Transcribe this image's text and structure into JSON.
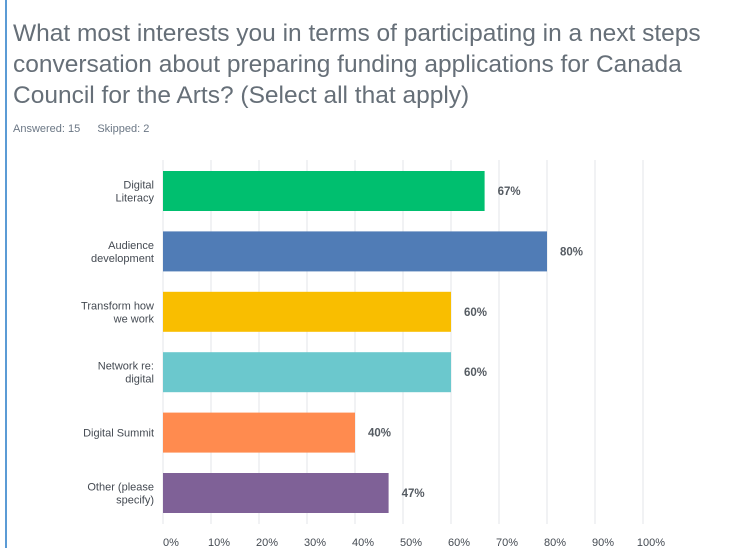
{
  "question": "What most interests you in terms of participating in a next steps conversation about preparing funding applications for Canada Council for the Arts? (Select all that apply)",
  "stats": {
    "answered": "Answered: 15",
    "skipped": "Skipped: 2"
  },
  "chart_data": {
    "type": "bar",
    "orientation": "horizontal",
    "categories": [
      [
        "Digital",
        "Literacy"
      ],
      [
        "Audience",
        "development"
      ],
      [
        "Transform how",
        "we work"
      ],
      [
        "Network re:",
        "digital"
      ],
      [
        "Digital Summit"
      ],
      [
        "Other (please",
        "specify)"
      ]
    ],
    "values": [
      67,
      80,
      60,
      60,
      40,
      47
    ],
    "value_labels": [
      "67%",
      "80%",
      "60%",
      "60%",
      "40%",
      "47%"
    ],
    "colors": [
      "#00bf6f",
      "#507cb6",
      "#f9be00",
      "#6bc8cd",
      "#ff8b4f",
      "#7f6197"
    ],
    "xlim": [
      0,
      100
    ],
    "ticks": [
      "0%",
      "10%",
      "20%",
      "30%",
      "40%",
      "50%",
      "60%",
      "70%",
      "80%",
      "90%",
      "100%"
    ],
    "grid": true
  }
}
